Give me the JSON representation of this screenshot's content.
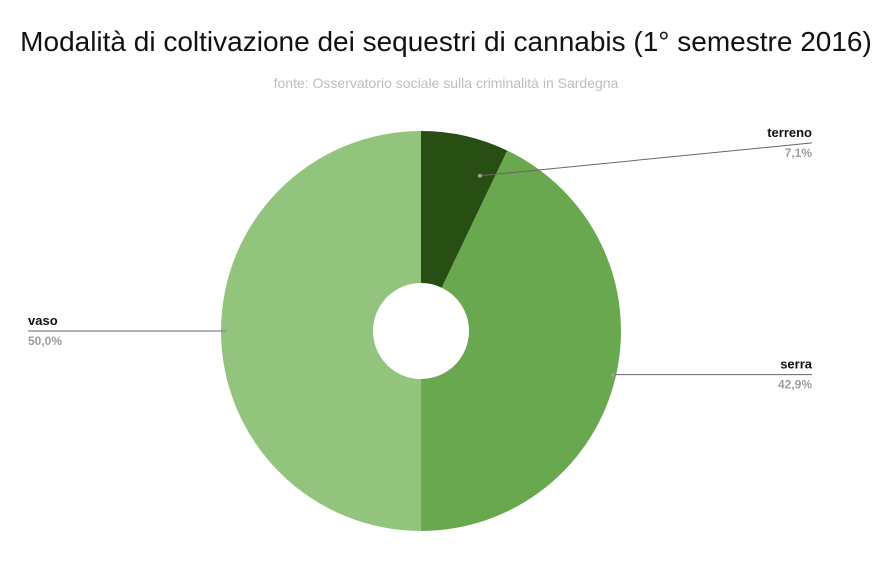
{
  "title": "Modalità di coltivazione dei sequestri di cannabis (1° semestre  2016)",
  "subtitle": "fonte: Osservatorio sociale sulla criminalità in Sardegna",
  "chart_data": {
    "type": "pie",
    "donut": true,
    "title": "Modalità di coltivazione dei sequestri di cannabis (1° semestre  2016)",
    "subtitle": "fonte: Osservatorio sociale sulla criminalità in Sardegna",
    "slices": [
      {
        "label": "terreno",
        "value": 7.1,
        "value_label": "7,1%",
        "color": "#274e13"
      },
      {
        "label": "serra",
        "value": 42.9,
        "value_label": "42,9%",
        "color": "#6aa84f"
      },
      {
        "label": "vaso",
        "value": 50.0,
        "value_label": "50,0%",
        "color": "#93c47d"
      }
    ],
    "legend": "labels beside slices"
  }
}
